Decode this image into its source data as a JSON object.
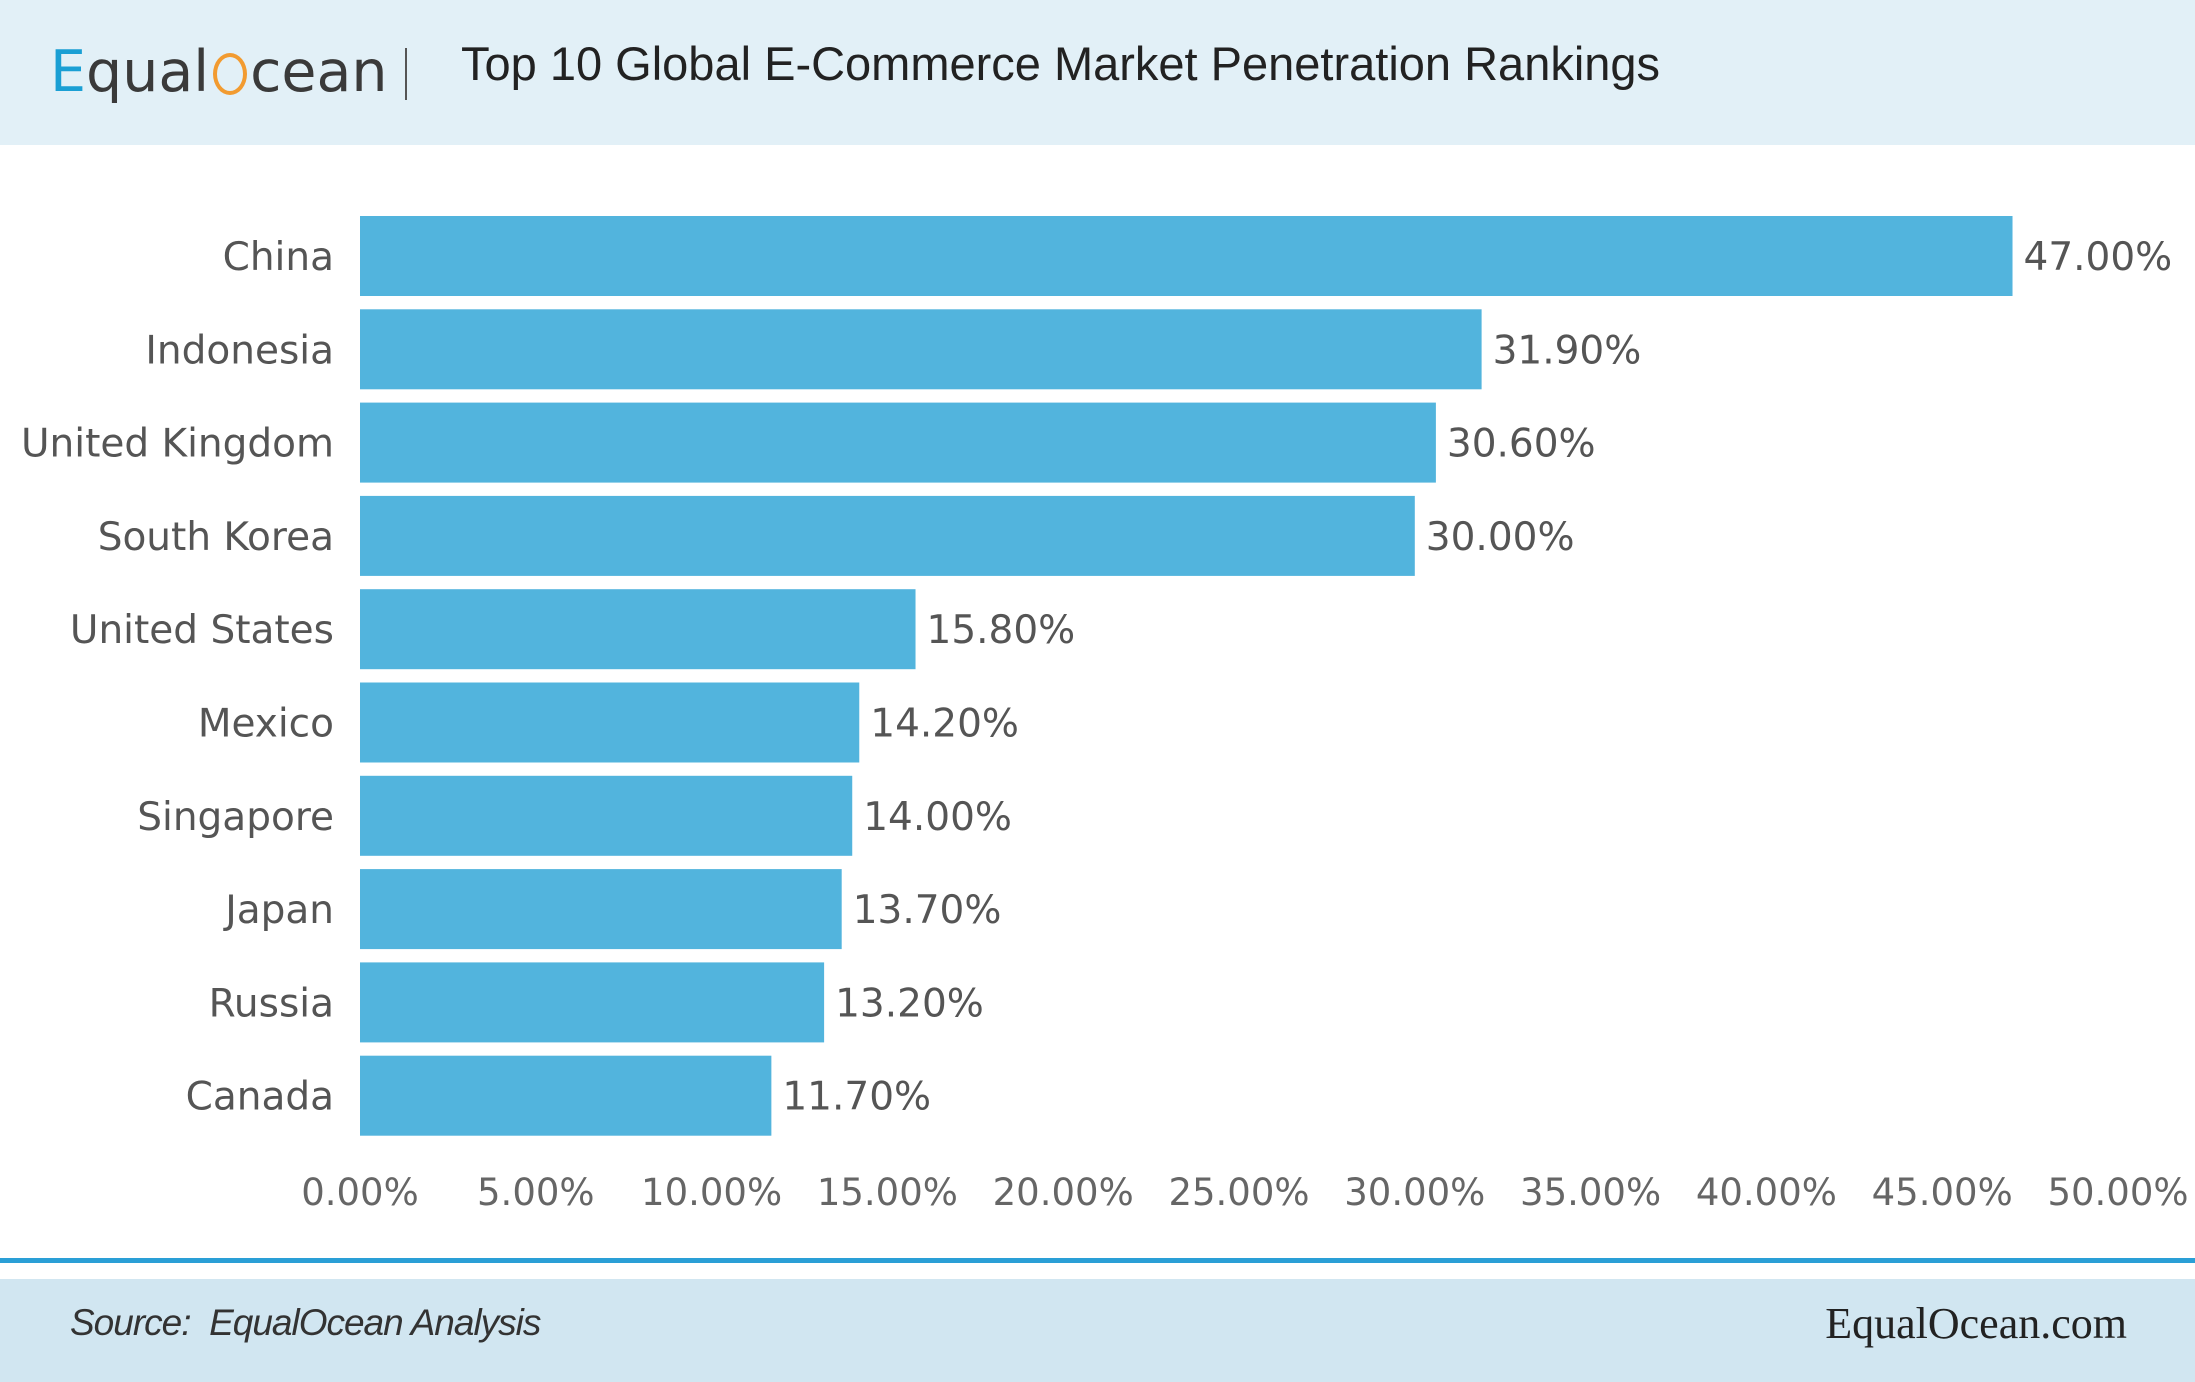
{
  "header": {
    "logo_pre": "qual",
    "logo_e": "E",
    "logo_post": "cean",
    "title": "Top 10 Global E-Commerce Market Penetration Rankings"
  },
  "colors": {
    "bar": "#52b4dd",
    "header_bg": "#e2f0f7",
    "footer_bg": "#d1e6f1",
    "footer_line": "#2a9fd6",
    "logo_blue": "#1a9fd4",
    "logo_orange": "#f29b30"
  },
  "chart_data": {
    "type": "bar",
    "orientation": "horizontal",
    "title": "Top 10 Global E-Commerce Market Penetration Rankings",
    "categories": [
      "China",
      "Indonesia",
      "United Kingdom",
      "South Korea",
      "United States",
      "Mexico",
      "Singapore",
      "Japan",
      "Russia",
      "Canada"
    ],
    "values": [
      47.0,
      31.9,
      30.6,
      30.0,
      15.8,
      14.2,
      14.0,
      13.7,
      13.2,
      11.7
    ],
    "value_labels": [
      "47.00%",
      "31.90%",
      "30.60%",
      "30.00%",
      "15.80%",
      "14.20%",
      "14.00%",
      "13.70%",
      "13.20%",
      "11.70%"
    ],
    "xlim": [
      0,
      50
    ],
    "xticks": [
      "0.00%",
      "5.00%",
      "10.00%",
      "15.00%",
      "20.00%",
      "25.00%",
      "30.00%",
      "35.00%",
      "40.00%",
      "45.00%",
      "50.00%"
    ],
    "xlabel": "",
    "ylabel": "",
    "grid": false,
    "legend": "none"
  },
  "footer": {
    "source": "Source:  EqualOcean Analysis",
    "site": "EqualOcean.com"
  }
}
